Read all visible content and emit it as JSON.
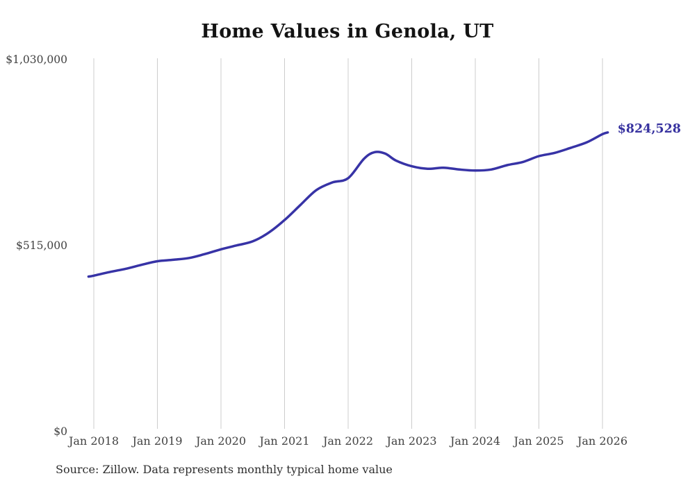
{
  "chart_data": {
    "type": "line",
    "title": "Home Values in Genola, UT",
    "series_name": "Monthly typical home value",
    "x": [
      "2017-12",
      "2018-01",
      "2018-04",
      "2018-07",
      "2018-10",
      "2019-01",
      "2019-04",
      "2019-07",
      "2019-10",
      "2020-01",
      "2020-04",
      "2020-07",
      "2020-10",
      "2021-01",
      "2021-04",
      "2021-07",
      "2021-10",
      "2022-01",
      "2022-04",
      "2022-06",
      "2022-08",
      "2022-10",
      "2023-01",
      "2023-04",
      "2023-07",
      "2023-10",
      "2024-01",
      "2024-04",
      "2024-07",
      "2024-10",
      "2025-01",
      "2025-04",
      "2025-07",
      "2025-10",
      "2026-01",
      "2026-02"
    ],
    "values": [
      425500,
      428000,
      438000,
      447000,
      458000,
      468000,
      472000,
      477000,
      488000,
      501000,
      512000,
      523000,
      547000,
      582000,
      624000,
      665000,
      686000,
      698000,
      752000,
      770000,
      766000,
      747000,
      731000,
      724000,
      727000,
      722000,
      719000,
      722000,
      734000,
      743000,
      759000,
      768000,
      782000,
      797000,
      820000,
      824528
    ],
    "latest_value": 824528,
    "end_label": "$824,528",
    "ylim": [
      0,
      1030000
    ],
    "y_ticks": [
      {
        "value": 0,
        "label": "$0"
      },
      {
        "value": 515000,
        "label": "$515,000"
      },
      {
        "value": 1030000,
        "label": "$1,030,000"
      }
    ],
    "x_ticks": [
      {
        "date": "2018-01",
        "label": "Jan 2018"
      },
      {
        "date": "2019-01",
        "label": "Jan 2019"
      },
      {
        "date": "2020-01",
        "label": "Jan 2020"
      },
      {
        "date": "2021-01",
        "label": "Jan 2021"
      },
      {
        "date": "2022-01",
        "label": "Jan 2022"
      },
      {
        "date": "2023-01",
        "label": "Jan 2023"
      },
      {
        "date": "2024-01",
        "label": "Jan 2024"
      },
      {
        "date": "2025-01",
        "label": "Jan 2025"
      },
      {
        "date": "2026-01",
        "label": "Jan 2026"
      }
    ],
    "grid": "vertical",
    "legend": "none",
    "line_color": "#3733a6",
    "end_label_color": "#36319f",
    "grid_color": "#cccccc",
    "tick_text_color": "#414141",
    "source": "Source: Zillow. Data represents monthly typical home value"
  }
}
